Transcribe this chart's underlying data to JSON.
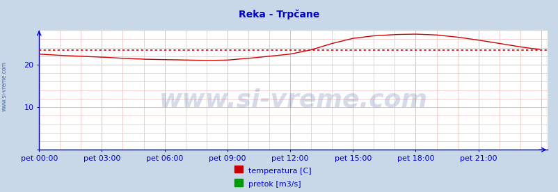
{
  "title": "Reka - Trpčane",
  "title_color": "#0000cc",
  "outer_bg": "#c8d8e8",
  "plot_bg": "#ffffff",
  "axes_color": "#0000cc",
  "grid_major_color": "#c8c8c8",
  "grid_minor_color": "#f0c8c8",
  "tick_color": "#0000cc",
  "watermark_text": "www.si-vreme.com",
  "watermark_color": "#1a3a8a",
  "watermark_alpha": 0.18,
  "watermark_fontsize": 26,
  "side_text": "www.si-vreme.com",
  "side_text_color": "#3a5a9a",
  "ylim": [
    0,
    28
  ],
  "yticks": [
    0,
    10,
    20
  ],
  "n_points": 288,
  "temp_avg": 23.5,
  "temp_color": "#cc0000",
  "pretok_color": "#009900",
  "xtick_labels": [
    "pet 00:00",
    "pet 03:00",
    "pet 06:00",
    "pet 09:00",
    "pet 12:00",
    "pet 15:00",
    "pet 18:00",
    "pet 21:00"
  ],
  "legend_labels": [
    "temperatura [C]",
    "pretok [m3/s]"
  ],
  "legend_colors": [
    "#cc0000",
    "#009900"
  ]
}
